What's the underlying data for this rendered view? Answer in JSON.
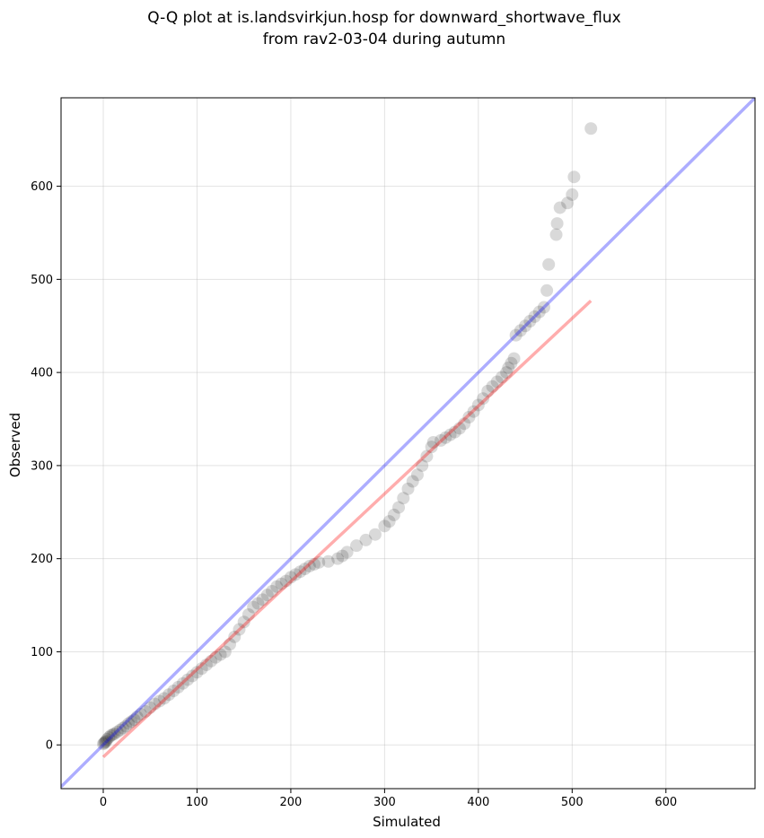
{
  "chart_data": {
    "type": "scatter",
    "title_lines": [
      "Q-Q plot at is.landsvirkjun.hosp for downward_shortwave_flux",
      "from rav2-03-04 during autumn"
    ],
    "xlabel": "Simulated",
    "ylabel": "Observed",
    "xlim": [
      -45,
      695
    ],
    "ylim": [
      -47,
      695
    ],
    "xticks": [
      0,
      100,
      200,
      300,
      400,
      500,
      600
    ],
    "yticks": [
      0,
      100,
      200,
      300,
      400,
      500,
      600
    ],
    "grid": true,
    "identity_line": {
      "color": "#0000ff",
      "x": [
        -45,
        695
      ],
      "y": [
        -45,
        695
      ]
    },
    "fit_line": {
      "color": "#ff0000",
      "x": [
        0,
        520
      ],
      "y": [
        -13,
        477
      ]
    },
    "series": [
      {
        "marker_color": "#000000",
        "x": [
          0,
          1,
          2,
          3,
          4,
          6,
          8,
          10,
          12,
          15,
          18,
          21,
          24,
          27,
          30,
          33,
          36,
          40,
          45,
          50,
          55,
          60,
          65,
          70,
          75,
          80,
          85,
          90,
          95,
          100,
          105,
          110,
          115,
          120,
          125,
          130,
          135,
          140,
          145,
          150,
          155,
          160,
          165,
          170,
          175,
          180,
          185,
          190,
          195,
          200,
          205,
          210,
          215,
          220,
          225,
          230,
          240,
          250,
          255,
          260,
          270,
          280,
          290,
          300,
          305,
          310,
          315,
          320,
          325,
          330,
          335,
          340,
          345,
          350,
          352,
          360,
          365,
          370,
          375,
          380,
          385,
          390,
          395,
          400,
          405,
          410,
          415,
          420,
          425,
          430,
          432,
          435,
          438,
          440,
          445,
          450,
          455,
          460,
          465,
          470,
          473,
          475,
          483,
          484,
          487,
          495,
          500,
          502,
          520
        ],
        "y": [
          1,
          2,
          3,
          4,
          6,
          8,
          10,
          11,
          12,
          14,
          16,
          18,
          20,
          23,
          25,
          27,
          30,
          33,
          36,
          40,
          44,
          47,
          50,
          54,
          58,
          62,
          66,
          70,
          74,
          78,
          82,
          86,
          90,
          94,
          97,
          100,
          108,
          116,
          124,
          132,
          140,
          148,
          152,
          156,
          161,
          165,
          170,
          173,
          176,
          180,
          183,
          186,
          189,
          192,
          194,
          196,
          197,
          200,
          203,
          207,
          214,
          220,
          226,
          235,
          240,
          247,
          255,
          265,
          275,
          283,
          290,
          300,
          310,
          320,
          325,
          327,
          330,
          333,
          336,
          340,
          345,
          352,
          358,
          365,
          372,
          380,
          385,
          390,
          395,
          400,
          405,
          410,
          415,
          440,
          445,
          450,
          455,
          460,
          465,
          470,
          488,
          516,
          548,
          560,
          577,
          582,
          591,
          610,
          662
        ]
      }
    ]
  }
}
